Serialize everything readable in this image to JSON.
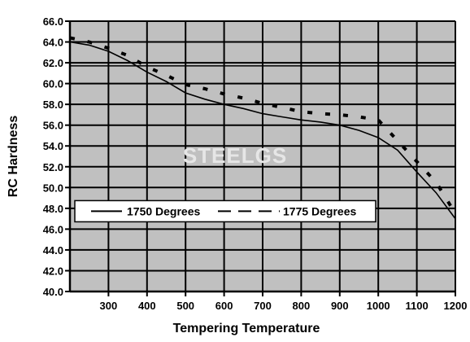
{
  "chart_data": {
    "type": "line",
    "xlabel": "Tempering Temperature",
    "ylabel": "RC Hardness",
    "xlim": [
      200,
      1200
    ],
    "ylim": [
      40.0,
      66.0
    ],
    "x_ticks": [
      "300",
      "400",
      "500",
      "600",
      "700",
      "800",
      "900",
      "1000",
      "1100",
      "1200"
    ],
    "y_ticks": [
      "40.0",
      "42.0",
      "44.0",
      "46.0",
      "48.0",
      "50.0",
      "52.0",
      "54.0",
      "56.0",
      "58.0",
      "60.0",
      "62.0",
      "64.0",
      "66.0"
    ],
    "grid": true,
    "legend_position": "lower-left",
    "watermark": "STEELGS",
    "series": [
      {
        "name": "1750 Degrees",
        "style": "solid",
        "x": [
          200,
          250,
          300,
          350,
          400,
          450,
          500,
          550,
          600,
          650,
          700,
          750,
          800,
          850,
          900,
          950,
          1000,
          1050,
          1100,
          1150,
          1200
        ],
        "y": [
          64.0,
          63.7,
          63.1,
          62.2,
          61.1,
          60.2,
          59.1,
          58.5,
          58.0,
          57.6,
          57.1,
          56.8,
          56.5,
          56.3,
          56.0,
          55.5,
          54.8,
          53.6,
          51.5,
          49.5,
          47.0
        ]
      },
      {
        "name": "1775 Degrees",
        "style": "dashed",
        "x": [
          200,
          250,
          300,
          350,
          400,
          450,
          500,
          550,
          600,
          650,
          700,
          750,
          800,
          850,
          900,
          950,
          1000,
          1050,
          1100,
          1150,
          1200
        ],
        "y": [
          64.4,
          64.0,
          63.4,
          62.7,
          61.6,
          60.8,
          59.9,
          59.5,
          59.0,
          58.6,
          58.1,
          57.7,
          57.3,
          57.1,
          57.0,
          56.8,
          56.5,
          54.5,
          52.5,
          50.5,
          47.5
        ]
      }
    ]
  },
  "colors": {
    "plot_background": "#c0c0c0",
    "grid": "#000000",
    "line": "#000000",
    "legend_background": "#ffffff"
  }
}
